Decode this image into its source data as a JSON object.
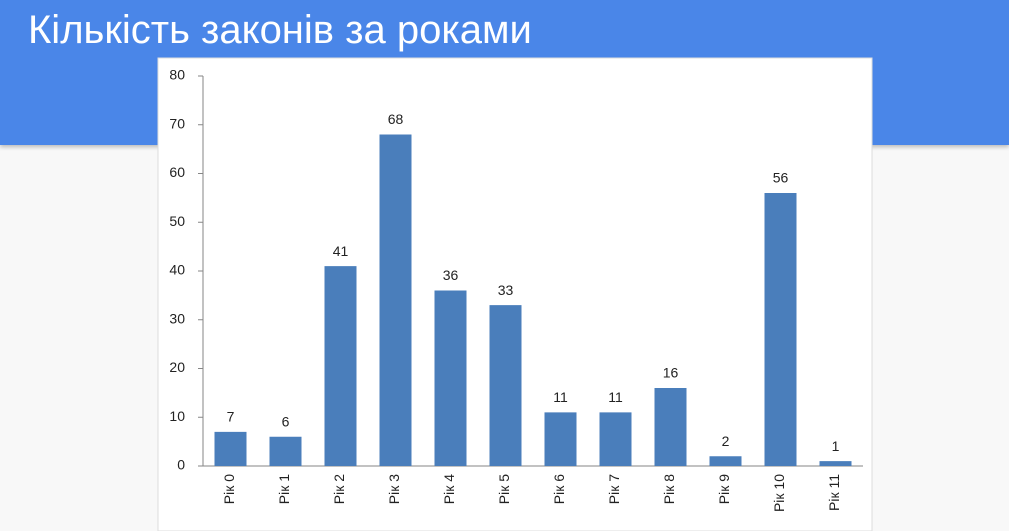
{
  "chart_data": {
    "type": "bar",
    "title": "Кількість законів за роками",
    "categories": [
      "Рік 0",
      "Рік 1",
      "Рік 2",
      "Рік 3",
      "Рік 4",
      "Рік 5",
      "Рік 6",
      "Рік 7",
      "Рік 8",
      "Рік 9",
      "Рік 10",
      "Рік 11"
    ],
    "values": [
      7,
      6,
      41,
      68,
      36,
      33,
      11,
      11,
      16,
      2,
      56,
      1
    ],
    "color": "#4a7ebb",
    "ylim": [
      0,
      80
    ],
    "yticks": [
      0,
      10,
      20,
      30,
      40,
      50,
      60,
      70,
      80
    ],
    "grid": false
  }
}
